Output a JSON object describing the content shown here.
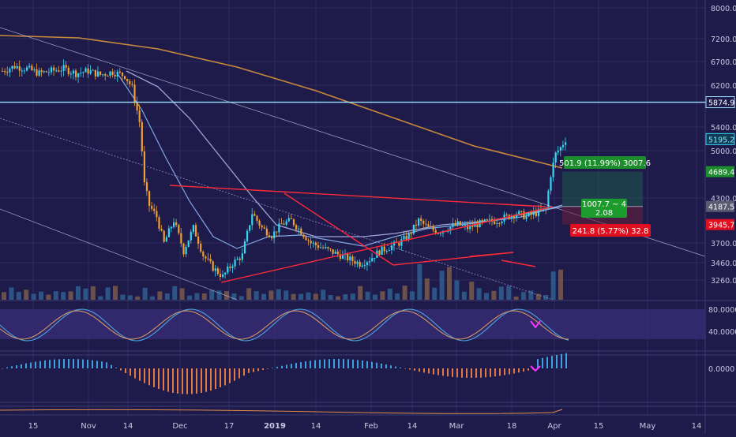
{
  "theme": {
    "bg": "#1e1b4b",
    "grid": "#2d2a5e",
    "up": "#35d6f0",
    "down": "#f0a030",
    "ma_long": "#c98a3a",
    "ma_mid": "#9fa6d8",
    "ma_short": "#7fa7e0",
    "trend": "#ff2a3a",
    "hline": "#9fe0ff",
    "osc_line": "#4aa3e0",
    "osc_fill": "#3b2f7a",
    "magenta": "#ff33ff"
  },
  "chart_data": {
    "type": "candlestick",
    "x_ticks": [
      "15",
      "Nov",
      "14",
      "Dec",
      "17",
      "2019",
      "14",
      "Feb",
      "14",
      "Mar",
      "18",
      "Apr",
      "15",
      "May",
      "14"
    ],
    "y_ticks": [
      "8000.0",
      "7200.0",
      "6700.0",
      "6200.0",
      "5400.0",
      "5000.0",
      "4300.0",
      "3700.0",
      "3460.0",
      "3260.0"
    ],
    "ylim": [
      3050,
      8050
    ],
    "price_labels": [
      {
        "text": "5874.9",
        "value": 5874.9,
        "style": "hline"
      },
      {
        "text": "5195.2",
        "value": 5195.2,
        "style": "cyan"
      },
      {
        "text": "4689.4",
        "value": 4689.4,
        "style": "green"
      },
      {
        "text": "4187.5",
        "value": 4187.5,
        "style": "gray"
      },
      {
        "text": "3945.7",
        "value": 3945.7,
        "style": "red"
      }
    ],
    "horizontal_line": 5874.9,
    "position_tool": {
      "target_label": "501.9 (11.99%) 3007.6",
      "stop_label": "241.8 (5.77%) 32.8",
      "ratio_line1": "1007.7 ~ 4",
      "ratio_line2": "2.08"
    },
    "close_path": [
      [
        0,
        6500
      ],
      [
        5,
        6600
      ],
      [
        10,
        6550
      ],
      [
        15,
        6450
      ],
      [
        20,
        6500
      ],
      [
        25,
        6550
      ],
      [
        30,
        6450
      ],
      [
        35,
        6500
      ],
      [
        40,
        6420
      ],
      [
        45,
        6480
      ],
      [
        50,
        6400
      ],
      [
        53,
        6150
      ],
      [
        56,
        5500
      ],
      [
        58,
        4500
      ],
      [
        60,
        4200
      ],
      [
        63,
        4050
      ],
      [
        66,
        3700
      ],
      [
        70,
        4000
      ],
      [
        74,
        3600
      ],
      [
        78,
        3900
      ],
      [
        82,
        3550
      ],
      [
        86,
        3400
      ],
      [
        90,
        3300
      ],
      [
        94,
        3450
      ],
      [
        98,
        3550
      ],
      [
        102,
        4100
      ],
      [
        106,
        3900
      ],
      [
        110,
        3800
      ],
      [
        114,
        3950
      ],
      [
        118,
        4000
      ],
      [
        122,
        3850
      ],
      [
        126,
        3700
      ],
      [
        130,
        3650
      ],
      [
        134,
        3600
      ],
      [
        138,
        3550
      ],
      [
        142,
        3500
      ],
      [
        146,
        3450
      ],
      [
        150,
        3500
      ],
      [
        154,
        3600
      ],
      [
        158,
        3650
      ],
      [
        162,
        3700
      ],
      [
        166,
        3800
      ],
      [
        170,
        4000
      ],
      [
        174,
        3900
      ],
      [
        178,
        3850
      ],
      [
        182,
        3900
      ],
      [
        186,
        3950
      ],
      [
        190,
        3900
      ],
      [
        194,
        3950
      ],
      [
        198,
        3980
      ],
      [
        202,
        4000
      ],
      [
        206,
        4050
      ],
      [
        210,
        4100
      ],
      [
        214,
        4050
      ],
      [
        218,
        4100
      ],
      [
        222,
        4150
      ],
      [
        224,
        4650
      ],
      [
        226,
        4950
      ],
      [
        228,
        5050
      ],
      [
        230,
        5195
      ]
    ],
    "volume_bars": 76,
    "indicator_panels": [
      {
        "name": "stoch_rsi",
        "y_ticks": [
          "80.0000",
          "40.0000"
        ]
      },
      {
        "name": "macd_histogram",
        "y_ticks": [
          "0.0000"
        ]
      },
      {
        "name": "lower_line",
        "y_ticks": []
      }
    ]
  }
}
